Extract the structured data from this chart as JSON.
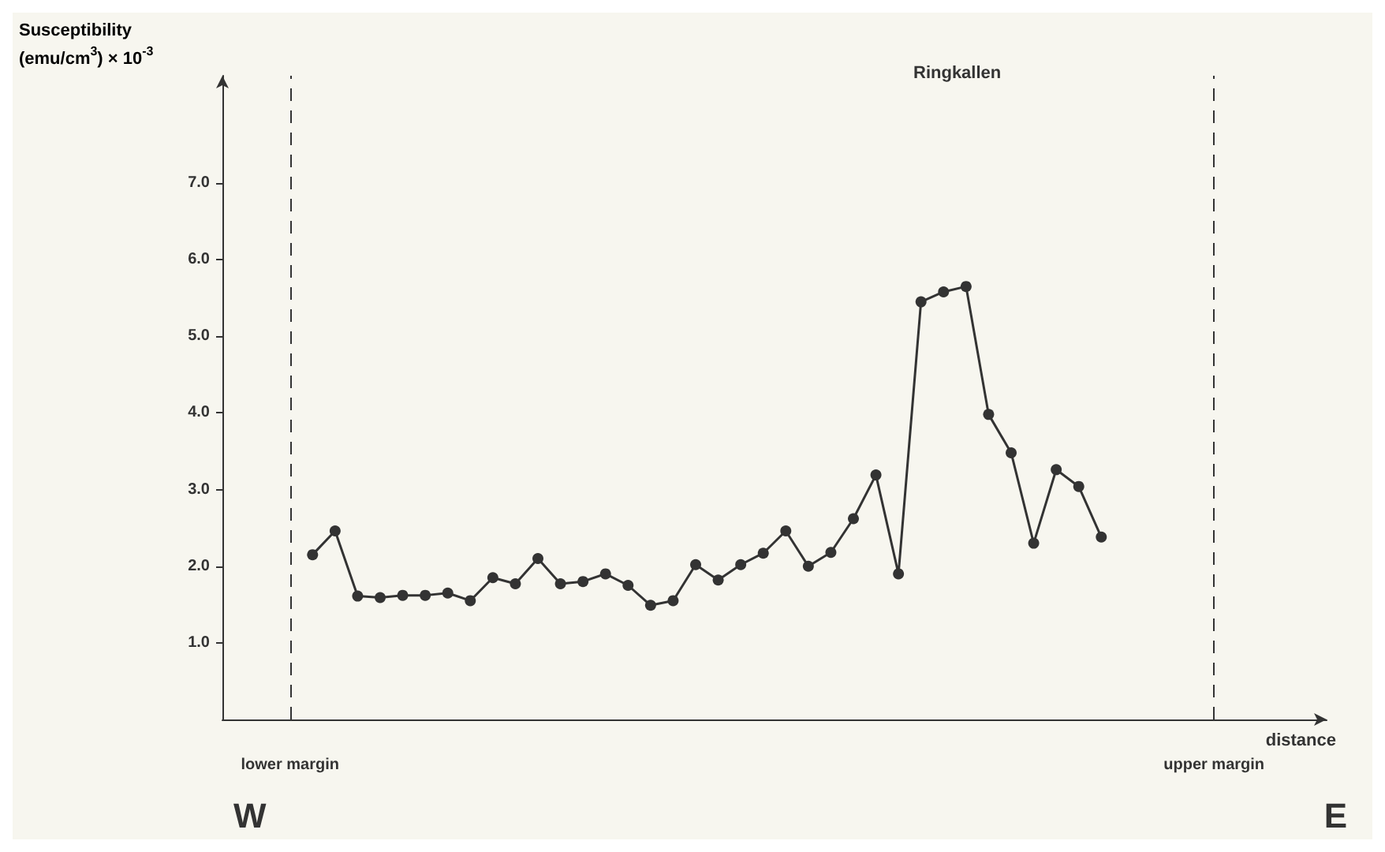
{
  "chart_data": {
    "type": "line",
    "title": "Ringkallen",
    "ylabel": "Susceptibility\n(emu/cm$^{3}$) × 10$^{-3}$",
    "xlabel": "distance",
    "categories": [
      null,
      null,
      null,
      "lower margin",
      null,
      null,
      null,
      null,
      null,
      null,
      null,
      null,
      null,
      null,
      null,
      null,
      null,
      null,
      null,
      null,
      null,
      null,
      null,
      null,
      null,
      null,
      null,
      null,
      null,
      null,
      null,
      null,
      null,
      null,
      null,
      null,
      null,
      null,
      null,
      null,
      null,
      null,
      null,
      null,
      "upper margin",
      null,
      null,
      null,
      null,
      null
    ],
    "series": [
      {
        "color": "#333333",
        "values": [
          null,
          null,
          null,
          null,
          2.15,
          2.46,
          1.61,
          1.59,
          1.62,
          1.62,
          1.65,
          1.55,
          1.85,
          1.77,
          2.1,
          1.77,
          1.8,
          1.9,
          1.75,
          1.49,
          1.55,
          2.02,
          1.82,
          2.02,
          2.17,
          2.46,
          2.0,
          2.18,
          2.62,
          3.19,
          1.9,
          5.45,
          5.58,
          5.65,
          3.98,
          3.48,
          2.3,
          3.26,
          3.04,
          2.38,
          null,
          null,
          null,
          null,
          null,
          null,
          null,
          null,
          null,
          null
        ]
      }
    ],
    "ylim": [
      0,
      8.4
    ],
    "yticks": [
      {
        "value": 1,
        "label": "1.0"
      },
      {
        "value": 2,
        "label": "2.0"
      },
      {
        "value": 3,
        "label": "3.0"
      },
      {
        "value": 4,
        "label": "4.0"
      },
      {
        "value": 5,
        "label": "5.0"
      },
      {
        "value": 6,
        "label": "6.0"
      },
      {
        "value": 7,
        "label": "7.0"
      }
    ],
    "ref_lines": [
      {
        "axis": "x",
        "value": "lower margin",
        "line_style": "dashed"
      },
      {
        "axis": "x",
        "value": "upper margin",
        "line_style": "dashed"
      }
    ],
    "annotations": [
      "W",
      "E"
    ],
    "marker": "circle",
    "grid": false
  }
}
